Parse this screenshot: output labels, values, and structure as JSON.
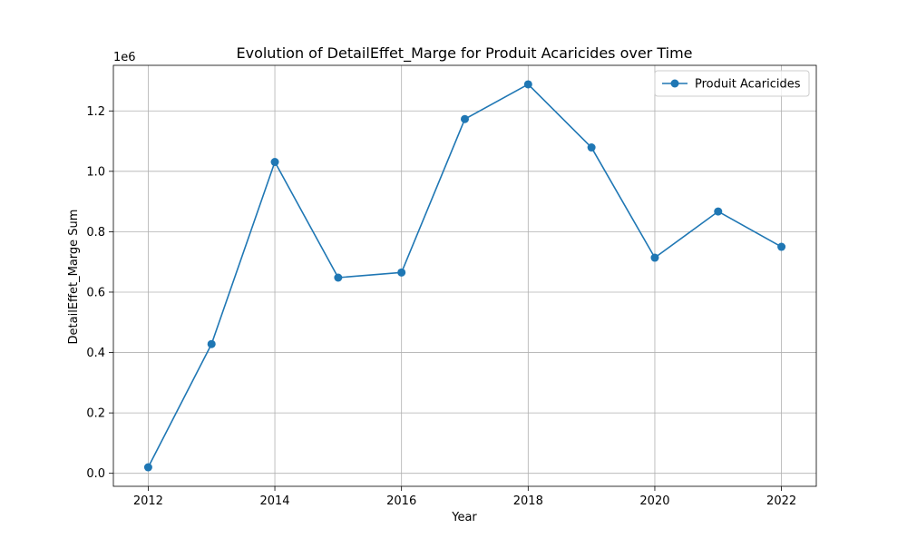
{
  "chart_data": {
    "type": "line",
    "title": "Evolution of DetailEffet_Marge for Produit Acaricides over Time",
    "xlabel": "Year",
    "ylabel": "DetailEffet_Marge Sum",
    "y_scale_label": "1e6",
    "x": [
      2012,
      2013,
      2014,
      2015,
      2016,
      2017,
      2018,
      2019,
      2020,
      2021,
      2022
    ],
    "series": [
      {
        "name": "Produit Acaricides",
        "values": [
          20000,
          428000,
          1031000,
          648000,
          665000,
          1173000,
          1288000,
          1079000,
          714000,
          867000,
          750000
        ],
        "color": "#1f77b4",
        "marker": "circle"
      }
    ],
    "xlim": [
      2011.45,
      2022.55
    ],
    "ylim": [
      -43000,
      1351000
    ],
    "x_ticks": [
      2012,
      2014,
      2016,
      2018,
      2020,
      2022
    ],
    "x_tick_labels": [
      "2012",
      "2014",
      "2016",
      "2018",
      "2020",
      "2022"
    ],
    "y_ticks": [
      0,
      200000,
      400000,
      600000,
      800000,
      1000000,
      1200000
    ],
    "y_tick_labels": [
      "0.0",
      "0.2",
      "0.4",
      "0.6",
      "0.8",
      "1.0",
      "1.2"
    ],
    "grid": true,
    "legend_position": "top-right"
  }
}
